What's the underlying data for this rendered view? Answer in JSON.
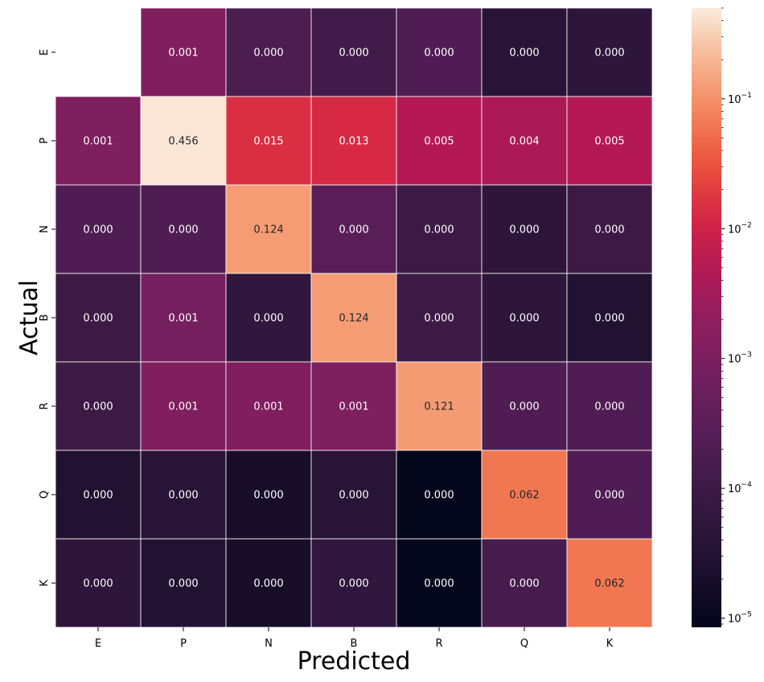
{
  "chart_data": {
    "type": "heatmap",
    "title": "",
    "xlabel": "Predicted",
    "ylabel": "Actual",
    "x_categories": [
      "E",
      "P",
      "N",
      "B",
      "R",
      "Q",
      "K"
    ],
    "y_categories": [
      "E",
      "P",
      "N",
      "B",
      "R",
      "Q",
      "K"
    ],
    "color_scale": "log",
    "colormap": "rocket",
    "color_range": [
      8.5e-06,
      0.5
    ],
    "masked_cells": [
      [
        0,
        0
      ]
    ],
    "values": [
      [
        null,
        0.0012,
        0.00018,
        0.00012,
        0.0002,
        4e-05,
        5e-05
      ],
      [
        0.0011,
        0.456,
        0.015,
        0.013,
        0.005,
        0.004,
        0.005
      ],
      [
        0.0002,
        0.0002,
        0.124,
        0.0003,
        0.0001,
        5e-05,
        0.0001
      ],
      [
        0.0001,
        0.0008,
        6e-05,
        0.124,
        0.0001,
        5e-05,
        3e-05
      ],
      [
        0.0001,
        0.0012,
        0.0012,
        0.0011,
        0.121,
        0.0002,
        0.0002
      ],
      [
        3e-05,
        4e-05,
        2e-05,
        4e-05,
        9e-06,
        0.062,
        0.0002
      ],
      [
        5e-05,
        3e-05,
        2e-05,
        6e-05,
        9e-06,
        0.00015,
        0.062
      ]
    ],
    "annotations": [
      [
        "",
        "0.001",
        "0.000",
        "0.000",
        "0.000",
        "0.000",
        "0.000"
      ],
      [
        "0.001",
        "0.456",
        "0.015",
        "0.013",
        "0.005",
        "0.004",
        "0.005"
      ],
      [
        "0.000",
        "0.000",
        "0.124",
        "0.000",
        "0.000",
        "0.000",
        "0.000"
      ],
      [
        "0.000",
        "0.001",
        "0.000",
        "0.124",
        "0.000",
        "0.000",
        "0.000"
      ],
      [
        "0.000",
        "0.001",
        "0.001",
        "0.001",
        "0.121",
        "0.000",
        "0.000"
      ],
      [
        "0.000",
        "0.000",
        "0.000",
        "0.000",
        "0.000",
        "0.062",
        "0.000"
      ],
      [
        "0.000",
        "0.000",
        "0.000",
        "0.000",
        "0.000",
        "0.000",
        "0.062"
      ]
    ],
    "colorbar": {
      "major_ticks": [
        {
          "value": 0.1,
          "label": "10",
          "exp": "−1"
        },
        {
          "value": 0.01,
          "label": "10",
          "exp": "−2"
        },
        {
          "value": 0.001,
          "label": "10",
          "exp": "−3"
        },
        {
          "value": 0.0001,
          "label": "10",
          "exp": "−4"
        },
        {
          "value": 1e-05,
          "label": "10",
          "exp": "−5"
        }
      ]
    },
    "grid": "white cell borders",
    "legend": "colorbar right"
  }
}
